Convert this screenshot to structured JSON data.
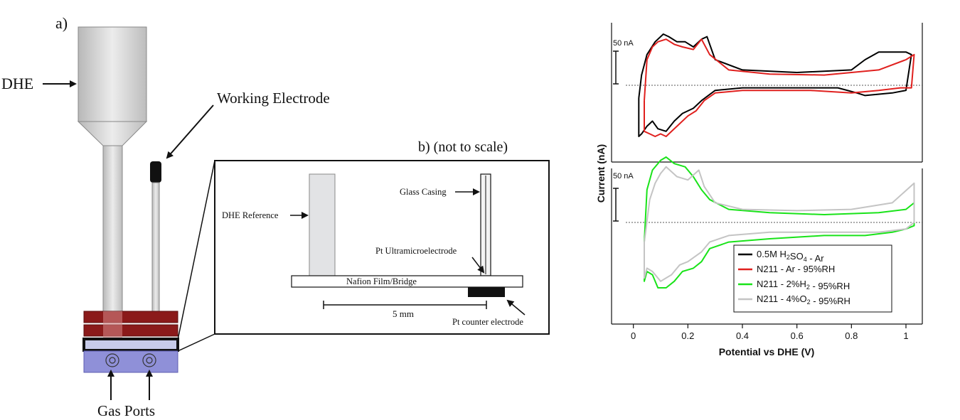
{
  "panel_a": {
    "label": "a)",
    "dhe_label": "DHE",
    "working_electrode_label": "Working Electrode",
    "gas_ports_label": "Gas Ports"
  },
  "panel_b": {
    "title": "b) (not to scale)",
    "dhe_reference": "DHE Reference",
    "glass_casing": "Glass Casing",
    "pt_ultramicroelectrode": "Pt Ultramicroelectrode",
    "nafion_film": "Nafion Film/Bridge",
    "scale_bar": "5 mm",
    "pt_counter": "Pt counter electrode"
  },
  "chart_data": {
    "type": "line",
    "xlabel": "Potential vs DHE (V)",
    "ylabel": "Current (nA)",
    "xlim": [
      -0.08,
      1.06
    ],
    "xticks": [
      "0",
      "0.2",
      "0.4",
      "0.6",
      "0.8",
      "1"
    ],
    "grid": false,
    "legend_position": "bottom-right of lower panel",
    "panels": [
      {
        "scale_bar_label": "50 nA",
        "series": [
          {
            "name": "0.5M H2SO4 - Ar",
            "color": "#000000",
            "x": [
              0.02,
              0.03,
              0.05,
              0.08,
              0.11,
              0.13,
              0.16,
              0.19,
              0.22,
              0.25,
              0.27,
              0.3,
              0.4,
              0.6,
              0.8,
              0.85,
              0.9,
              1.0,
              1.02,
              1.0,
              0.95,
              0.85,
              0.82,
              0.75,
              0.6,
              0.4,
              0.3,
              0.25,
              0.22,
              0.18,
              0.15,
              0.12,
              0.09,
              0.07,
              0.05,
              0.03,
              0.02
            ],
            "y": [
              -0.25,
              0.2,
              0.6,
              0.85,
              1.0,
              0.95,
              0.85,
              0.85,
              0.75,
              0.9,
              0.95,
              0.5,
              0.3,
              0.25,
              0.3,
              0.5,
              0.65,
              0.65,
              0.6,
              -0.1,
              -0.15,
              -0.2,
              -0.15,
              -0.05,
              -0.05,
              -0.05,
              -0.1,
              -0.3,
              -0.45,
              -0.55,
              -0.7,
              -0.9,
              -0.85,
              -0.7,
              -0.8,
              -0.95,
              -1.0
            ]
          },
          {
            "name": "N211 - Ar - 95%RH",
            "color": "#e0201e",
            "x": [
              0.04,
              0.05,
              0.07,
              0.09,
              0.12,
              0.15,
              0.18,
              0.22,
              0.25,
              0.28,
              0.35,
              0.5,
              0.7,
              0.9,
              1.0,
              1.03,
              1.02,
              0.98,
              0.9,
              0.8,
              0.65,
              0.5,
              0.4,
              0.3,
              0.26,
              0.23,
              0.2,
              0.16,
              0.12,
              0.1,
              0.08,
              0.06,
              0.04
            ],
            "y": [
              -0.3,
              0.5,
              0.75,
              0.85,
              0.9,
              0.8,
              0.75,
              0.7,
              0.9,
              0.6,
              0.3,
              0.22,
              0.2,
              0.3,
              0.5,
              0.6,
              -0.05,
              -0.05,
              -0.1,
              -0.15,
              -0.1,
              -0.1,
              -0.1,
              -0.15,
              -0.3,
              -0.5,
              -0.6,
              -0.8,
              -1.0,
              -0.95,
              -1.0,
              -0.95,
              -0.9
            ]
          }
        ]
      },
      {
        "scale_bar_label": "50 nA",
        "series": [
          {
            "name": "N211 - 2%H2 - 95%RH",
            "color": "#19e319",
            "x": [
              0.04,
              0.05,
              0.07,
              0.1,
              0.12,
              0.15,
              0.19,
              0.22,
              0.25,
              0.28,
              0.35,
              0.5,
              0.7,
              0.9,
              1.0,
              1.03,
              1.03,
              1.0,
              0.95,
              0.85,
              0.7,
              0.5,
              0.35,
              0.28,
              0.25,
              0.22,
              0.18,
              0.15,
              0.12,
              0.09,
              0.07,
              0.05,
              0.04
            ],
            "y": [
              -0.3,
              0.5,
              0.8,
              0.95,
              1.0,
              0.9,
              0.85,
              0.7,
              0.5,
              0.35,
              0.2,
              0.15,
              0.12,
              0.15,
              0.2,
              0.3,
              -0.05,
              -0.1,
              -0.15,
              -0.2,
              -0.2,
              -0.25,
              -0.3,
              -0.4,
              -0.6,
              -0.7,
              -0.75,
              -0.9,
              -1.0,
              -1.0,
              -0.8,
              -0.75,
              -0.9
            ]
          },
          {
            "name": "N211 - 4%O2 - 95%RH",
            "color": "#c4c4c4",
            "x": [
              0.04,
              0.06,
              0.08,
              0.1,
              0.12,
              0.16,
              0.2,
              0.24,
              0.26,
              0.3,
              0.4,
              0.6,
              0.8,
              0.95,
              1.03,
              1.03,
              1.0,
              0.9,
              0.7,
              0.5,
              0.35,
              0.28,
              0.25,
              0.2,
              0.17,
              0.14,
              0.1,
              0.07,
              0.05,
              0.04
            ],
            "y": [
              -0.3,
              0.35,
              0.6,
              0.75,
              0.85,
              0.7,
              0.65,
              0.8,
              0.55,
              0.3,
              0.2,
              0.18,
              0.2,
              0.3,
              0.6,
              0.0,
              -0.1,
              -0.15,
              -0.15,
              -0.15,
              -0.2,
              -0.3,
              -0.45,
              -0.6,
              -0.65,
              -0.8,
              -0.9,
              -0.75,
              -0.7,
              -0.85
            ]
          }
        ]
      }
    ]
  },
  "legend": [
    {
      "pre": "0.5M H",
      "sub": "2",
      "mid": "SO",
      "sub2": "4",
      "post": " - Ar",
      "color": "#000000"
    },
    {
      "pre": "N211 - Ar - 95%RH",
      "sub": "",
      "mid": "",
      "sub2": "",
      "post": "",
      "color": "#e0201e"
    },
    {
      "pre": "N211 - 2%H",
      "sub": "2",
      "mid": " - 95%RH",
      "sub2": "",
      "post": "",
      "color": "#19e319"
    },
    {
      "pre": "N211 - 4%O",
      "sub": "2",
      "mid": " - 95%RH",
      "sub2": "",
      "post": "",
      "color": "#c4c4c4"
    }
  ]
}
